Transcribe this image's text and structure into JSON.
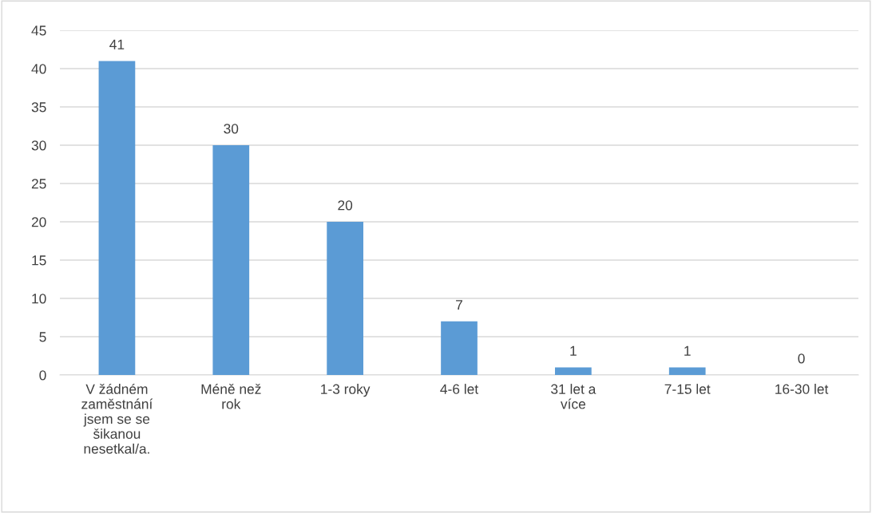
{
  "chart_data": {
    "type": "bar",
    "categories": [
      "V žádném zaměstnání jsem se se šikanou nesetkal/a.",
      "Méně než rok",
      "1-3 roky",
      "4-6 let",
      "31 let a více",
      "7-15 let",
      "16-30 let"
    ],
    "values": [
      41,
      30,
      20,
      7,
      1,
      1,
      0
    ],
    "color": "#5b9bd5",
    "ylim": [
      0,
      45
    ],
    "yticks": [
      0,
      5,
      10,
      15,
      20,
      25,
      30,
      35,
      40,
      45
    ],
    "grid": "y",
    "data_labels": true
  }
}
